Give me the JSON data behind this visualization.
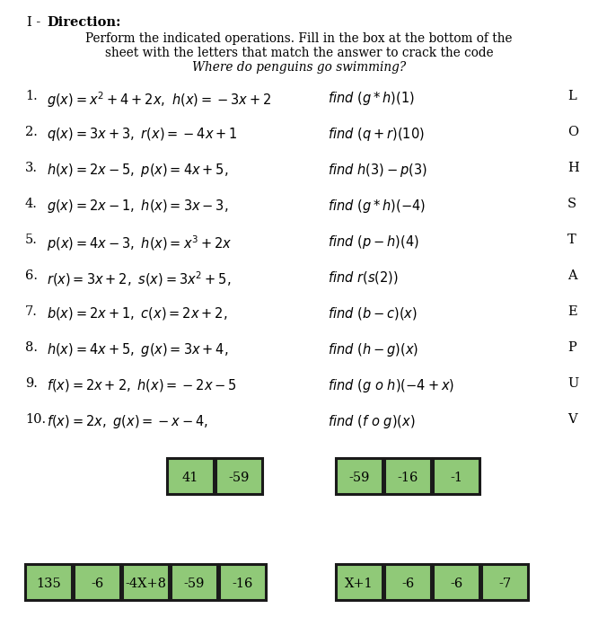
{
  "bg_color": "#ffffff",
  "row1_group1": [
    "41",
    "-59"
  ],
  "row1_group2": [
    "-59",
    "-16",
    "-1"
  ],
  "row2_group1": [
    "135",
    "-6",
    "-4X+8",
    "-59",
    "-16"
  ],
  "row2_group2": [
    "X+1",
    "-6",
    "-6",
    "-7"
  ],
  "box_fill": "#90c978",
  "box_edge": "#1a1a1a"
}
